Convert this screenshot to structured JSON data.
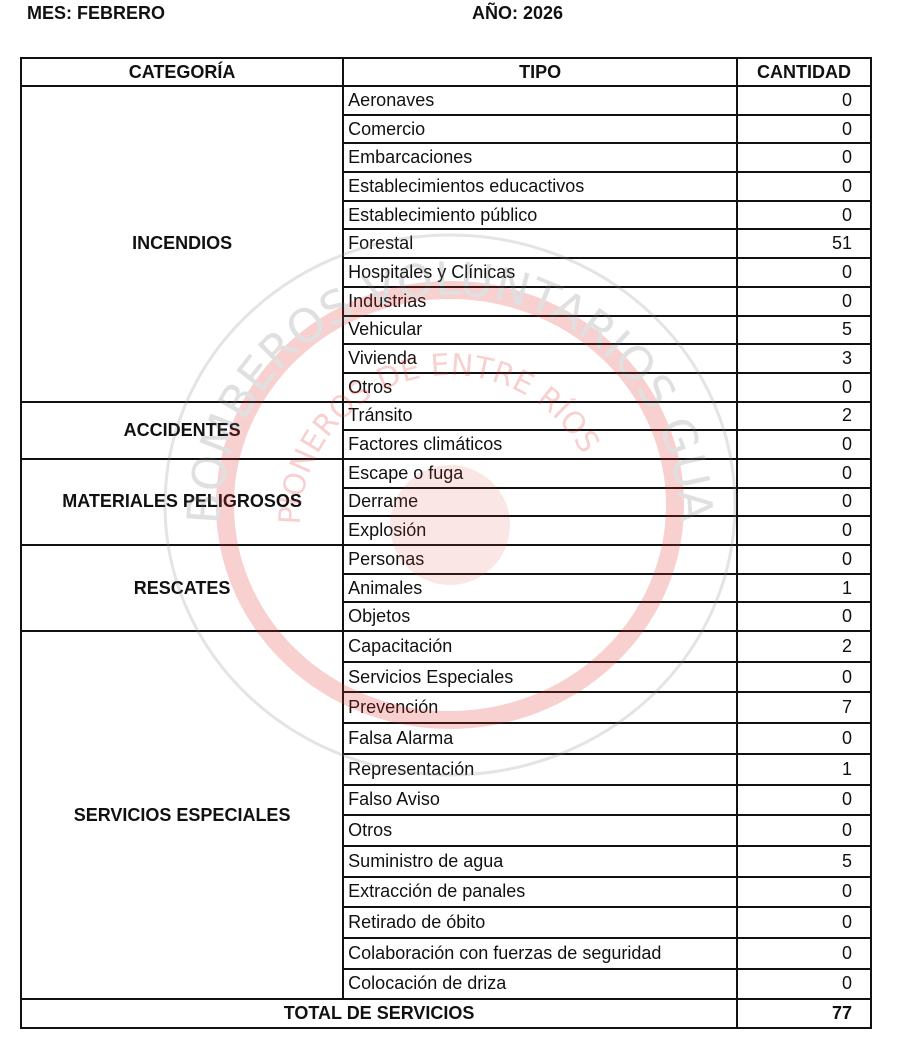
{
  "header": {
    "mes": "MES: FEBRERO",
    "anio": "AÑO: 2026"
  },
  "table": {
    "columns": [
      "CATEGORÍA",
      "TIPO",
      "CANTIDAD"
    ],
    "groups": [
      {
        "category": "INCENDIOS",
        "rows": [
          {
            "tipo": "Aeronaves",
            "cantidad": "0"
          },
          {
            "tipo": "Comercio",
            "cantidad": "0"
          },
          {
            "tipo": "Embarcaciones",
            "cantidad": "0"
          },
          {
            "tipo": "Establecimientos educactivos",
            "cantidad": "0"
          },
          {
            "tipo": "Establecimiento público",
            "cantidad": "0"
          },
          {
            "tipo": "Forestal",
            "cantidad": "51"
          },
          {
            "tipo": "Hospitales y Clínicas",
            "cantidad": "0"
          },
          {
            "tipo": "Industrias",
            "cantidad": "0"
          },
          {
            "tipo": "Vehicular",
            "cantidad": "5"
          },
          {
            "tipo": "Vivienda",
            "cantidad": "3"
          },
          {
            "tipo": "Otros",
            "cantidad": "0"
          }
        ]
      },
      {
        "category": "ACCIDENTES",
        "rows": [
          {
            "tipo": "Tránsito",
            "cantidad": "2"
          },
          {
            "tipo": "Factores climáticos",
            "cantidad": "0"
          }
        ]
      },
      {
        "category": "MATERIALES PELIGROSOS",
        "rows": [
          {
            "tipo": "Escape o fuga",
            "cantidad": "0"
          },
          {
            "tipo": "Derrame",
            "cantidad": "0"
          },
          {
            "tipo": "Explosión",
            "cantidad": "0"
          }
        ]
      },
      {
        "category": "RESCATES",
        "rows": [
          {
            "tipo": "Personas",
            "cantidad": "0"
          },
          {
            "tipo": "Animales",
            "cantidad": "1"
          },
          {
            "tipo": "Objetos",
            "cantidad": "0"
          }
        ]
      },
      {
        "category": "SERVICIOS ESPECIALES",
        "rows": [
          {
            "tipo": "Capacitación",
            "cantidad": "2"
          },
          {
            "tipo": "Servicios Especiales",
            "cantidad": "0"
          },
          {
            "tipo": "Prevención",
            "cantidad": "7"
          },
          {
            "tipo": "Falsa Alarma",
            "cantidad": "0"
          },
          {
            "tipo": "Representación",
            "cantidad": "1"
          },
          {
            "tipo": "Falso Aviso",
            "cantidad": "0"
          },
          {
            "tipo": "Otros",
            "cantidad": "0"
          },
          {
            "tipo": "Suministro de agua",
            "cantidad": "5"
          },
          {
            "tipo": "Extracción de panales",
            "cantidad": "0"
          },
          {
            "tipo": "Retirado de óbito",
            "cantidad": "0"
          },
          {
            "tipo": "Colaboración con fuerzas de seguridad",
            "cantidad": "0"
          },
          {
            "tipo": "Colocación de driza",
            "cantidad": "0"
          }
        ]
      }
    ],
    "total_label": "TOTAL DE SERVICIOS",
    "total_value": "77"
  },
  "watermark": {
    "outer_text": "BOMBEROS VOLUNTARIOS GUALEGUAYCHÚ",
    "inner_text": "PIONEROS DE ENTRE RÍOS",
    "ring_color": "#e03030"
  }
}
